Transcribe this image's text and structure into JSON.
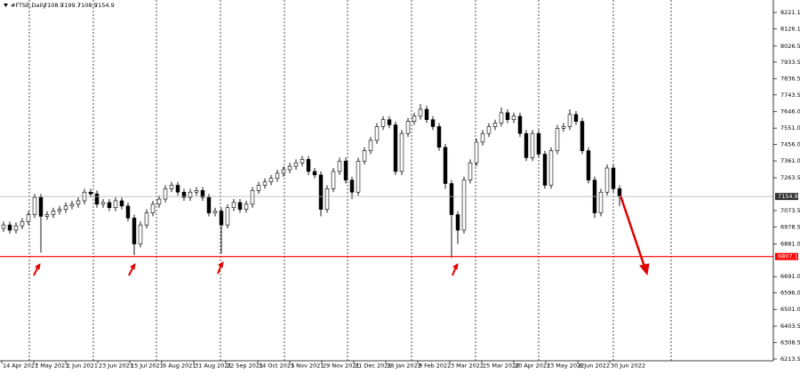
{
  "chart_data": {
    "type": "candlestick",
    "symbol": "#FTSE,Daily",
    "header_ohlc": [
      7108.5,
      7199.7,
      7108.5,
      7154.9
    ],
    "open": [
      6970,
      6990,
      6960,
      6985,
      7010,
      7050,
      7150,
      7040,
      7050,
      7070,
      7080,
      7100,
      7110,
      7130,
      7180,
      7170,
      7110,
      7120,
      7090,
      7130,
      7100,
      7030,
      6880,
      6990,
      7060,
      7110,
      7140,
      7200,
      7220,
      7180,
      7150,
      7180,
      7190,
      7150,
      7060,
      7070,
      6990,
      7090,
      7120,
      7080,
      7110,
      7190,
      7220,
      7240,
      7260,
      7290,
      7310,
      7330,
      7350,
      7370,
      7300,
      7280,
      7080,
      7200,
      7300,
      7360,
      7250,
      7180,
      7360,
      7420,
      7480,
      7560,
      7600,
      7570,
      7300,
      7520,
      7590,
      7620,
      7660,
      7600,
      7560,
      7440,
      7230,
      7050,
      6960,
      7250,
      7350,
      7470,
      7520,
      7560,
      7580,
      7640,
      7600,
      7620,
      7520,
      7380,
      7520,
      7400,
      7220,
      7420,
      7550,
      7560,
      7630,
      7590,
      7420,
      7250,
      7060,
      7180,
      7320,
      7200
    ],
    "high": [
      7010,
      7010,
      7005,
      7030,
      7070,
      7170,
      7170,
      7070,
      7090,
      7100,
      7120,
      7130,
      7150,
      7200,
      7200,
      7190,
      7140,
      7140,
      7150,
      7150,
      7120,
      7050,
      7010,
      7080,
      7130,
      7160,
      7220,
      7240,
      7240,
      7200,
      7200,
      7210,
      7210,
      7170,
      7090,
      7090,
      7110,
      7140,
      7140,
      7130,
      7210,
      7240,
      7260,
      7280,
      7310,
      7330,
      7350,
      7370,
      7390,
      7390,
      7320,
      7300,
      7220,
      7320,
      7380,
      7380,
      7270,
      7380,
      7440,
      7500,
      7580,
      7620,
      7620,
      7590,
      7540,
      7610,
      7640,
      7690,
      7680,
      7620,
      7580,
      7460,
      7250,
      7070,
      7270,
      7370,
      7490,
      7540,
      7580,
      7600,
      7670,
      7660,
      7640,
      7640,
      7540,
      7540,
      7540,
      7420,
      7440,
      7570,
      7580,
      7660,
      7650,
      7610,
      7440,
      7270,
      7200,
      7340,
      7340,
      7220
    ],
    "low": [
      6950,
      6940,
      6940,
      6965,
      6990,
      7030,
      6830,
      7020,
      7030,
      7050,
      7060,
      7080,
      7090,
      7110,
      7150,
      7090,
      7090,
      7070,
      7070,
      7080,
      7010,
      6815,
      6860,
      6970,
      7040,
      7090,
      7120,
      7180,
      7160,
      7130,
      7130,
      7160,
      7130,
      7040,
      7040,
      6825,
      6970,
      7070,
      7060,
      7060,
      7090,
      7170,
      7200,
      7220,
      7240,
      7270,
      7290,
      7310,
      7330,
      7280,
      7260,
      7040,
      7060,
      7180,
      7280,
      7230,
      7140,
      7160,
      7340,
      7400,
      7460,
      7540,
      7550,
      7280,
      7280,
      7500,
      7570,
      7600,
      7580,
      7540,
      7420,
      7200,
      6800,
      6880,
      6940,
      7230,
      7330,
      7450,
      7500,
      7540,
      7560,
      7580,
      7580,
      7500,
      7360,
      7360,
      7380,
      7200,
      7200,
      7400,
      7530,
      7540,
      7570,
      7400,
      7230,
      7030,
      7040,
      7160,
      7180,
      7100
    ],
    "close": [
      6990,
      6960,
      6985,
      7010,
      7050,
      7150,
      7040,
      7050,
      7070,
      7080,
      7100,
      7110,
      7130,
      7180,
      7170,
      7110,
      7120,
      7090,
      7130,
      7100,
      7030,
      6880,
      6990,
      7060,
      7110,
      7140,
      7200,
      7220,
      7180,
      7150,
      7180,
      7190,
      7150,
      7060,
      7070,
      6990,
      7090,
      7120,
      7080,
      7110,
      7190,
      7220,
      7240,
      7260,
      7290,
      7310,
      7330,
      7350,
      7370,
      7300,
      7280,
      7080,
      7200,
      7300,
      7360,
      7250,
      7180,
      7360,
      7420,
      7480,
      7560,
      7600,
      7570,
      7300,
      7520,
      7590,
      7620,
      7660,
      7600,
      7560,
      7440,
      7230,
      7050,
      6960,
      7250,
      7350,
      7470,
      7520,
      7560,
      7580,
      7640,
      7600,
      7620,
      7520,
      7380,
      7520,
      7400,
      7220,
      7420,
      7550,
      7560,
      7630,
      7590,
      7420,
      7250,
      7060,
      7180,
      7320,
      7200,
      7155
    ],
    "up_color": "#ffffff",
    "down_color": "#000000",
    "line_color": "#000000",
    "xlim": [
      -0.571,
      123.714
    ],
    "xticks": [
      {
        "value": -0.29,
        "label": "14 Apr 2021"
      },
      {
        "value": 4.86,
        "label": "7 May 2021"
      },
      {
        "value": 10,
        "label": "1 Jun 2021"
      },
      {
        "value": 15.14,
        "label": "23 Jun 2021"
      },
      {
        "value": 20.29,
        "label": "15 Jul 2021"
      },
      {
        "value": 25.43,
        "label": "6 Aug 2021"
      },
      {
        "value": 30.57,
        "label": "31 Aug 2021"
      },
      {
        "value": 35.71,
        "label": "22 Sep 2021"
      },
      {
        "value": 40.86,
        "label": "14 Oct 2021"
      },
      {
        "value": 46,
        "label": "5 Nov 2021"
      },
      {
        "value": 51.14,
        "label": "29 Nov 2021"
      },
      {
        "value": 56.29,
        "label": "21 Dec 2021"
      },
      {
        "value": 61.43,
        "label": "18 Jan 2022"
      },
      {
        "value": 66.57,
        "label": "9 Feb 2022"
      },
      {
        "value": 71.71,
        "label": "3 Mar 2022"
      },
      {
        "value": 76.86,
        "label": "25 Mar 2022"
      },
      {
        "value": 82,
        "label": "20 Apr 2022"
      },
      {
        "value": 87.14,
        "label": "13 May 2022"
      },
      {
        "value": 92.29,
        "label": "8 Jun 2022"
      },
      {
        "value": 97.43,
        "label": "30 Jun 2022"
      }
    ],
    "ylim": [
      6203.2,
      8293.2
    ],
    "yticks": [
      8221.1,
      8126.1,
      8026.5,
      7933.5,
      7836.5,
      7743.5,
      {
        "value": 7646.0,
        "label": "7646.0"
      },
      {
        "value": 7551.0,
        "label": "7551.0"
      },
      {
        "value": 7456.0,
        "label": "7456.0"
      },
      {
        "value": 7361.0,
        "label": "7361.0"
      },
      7263.5,
      7073.5,
      6978.5,
      {
        "value": 6881.0,
        "label": "6881.0"
      },
      {
        "value": 6691.0,
        "label": "6691.0"
      },
      {
        "value": 6596.0,
        "label": "6596.0"
      },
      {
        "value": 6501.0,
        "label": "6501.0"
      },
      6403.5,
      6308.5,
      6213.5
    ],
    "support_line": {
      "value": 6807.1,
      "color": "#ff0000"
    },
    "grid": false
  }
}
